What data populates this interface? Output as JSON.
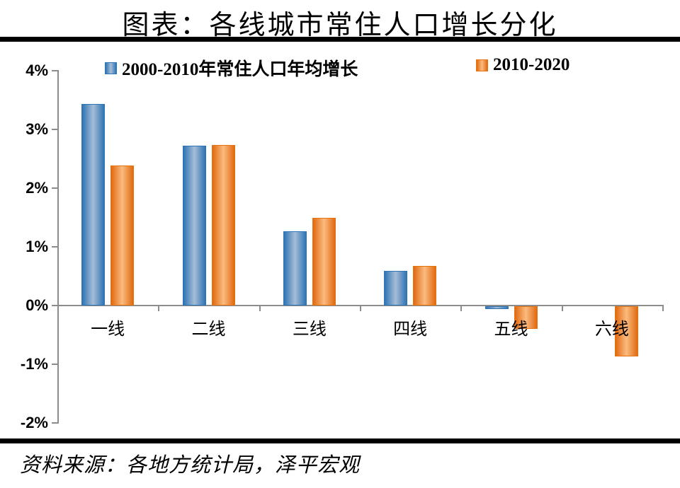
{
  "title": "图表：各线城市常住人口增长分化",
  "source_note": "资料来源：各地方统计局，泽平宏观",
  "colors": {
    "blue": {
      "edge": "#2E74B5",
      "mid": "#A6BDD6",
      "border": "#2E75B6"
    },
    "orange": {
      "edge": "#E06A10",
      "mid": "#FBBB80",
      "border": "#E8730E"
    },
    "axis": "#8C8C8C",
    "divider": "#000000",
    "text": "#000000"
  },
  "chart_data": {
    "type": "bar",
    "title": "图表：各线城市常住人口增长分化",
    "categories": [
      "一线",
      "二线",
      "三线",
      "四线",
      "五线",
      "六线"
    ],
    "series": [
      {
        "name": "2000-2010年常住人口年均增长",
        "color_key": "blue",
        "values": [
          3.43,
          2.72,
          1.26,
          0.59,
          -0.05,
          0.0
        ]
      },
      {
        "name": "2010-2020",
        "color_key": "orange",
        "values": [
          2.38,
          2.73,
          1.49,
          0.67,
          -0.38,
          -0.85
        ]
      }
    ],
    "xlabel": "",
    "ylabel": "",
    "ylim": [
      -2,
      4
    ],
    "yticks": [
      {
        "label": "4%",
        "value": 4
      },
      {
        "label": "3%",
        "value": 3
      },
      {
        "label": "2%",
        "value": 2
      },
      {
        "label": "1%",
        "value": 1
      },
      {
        "label": "0%",
        "value": 0
      },
      {
        "label": "-1%",
        "value": -1
      },
      {
        "label": "-2%",
        "value": -2
      }
    ],
    "legend_position": "top",
    "grid": false
  }
}
